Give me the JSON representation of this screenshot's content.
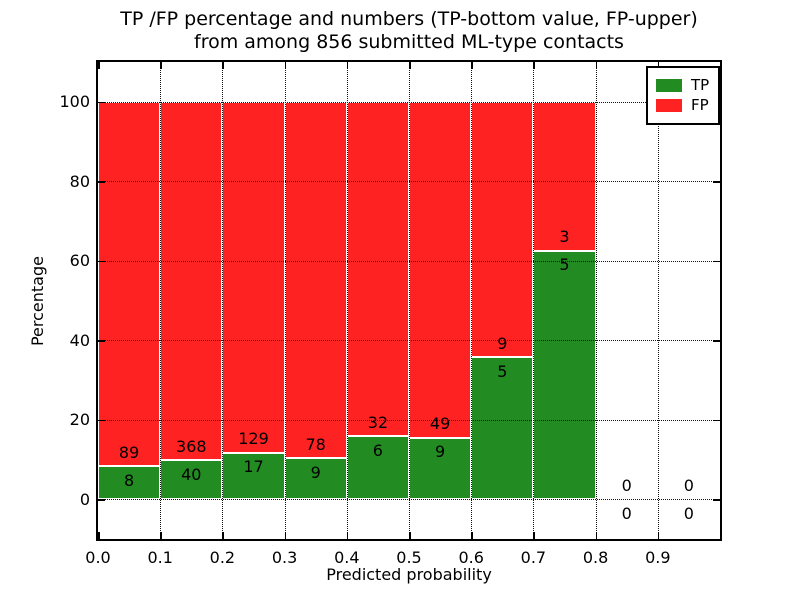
{
  "chart_data": {
    "type": "bar",
    "stacked": true,
    "units": "percent-of-bin-total",
    "title_lines": [
      "TP /FP percentage and numbers (TP-bottom value, FP-upper)",
      "from among 856 submitted ML-type contacts"
    ],
    "xlabel": "Predicted probability",
    "ylabel": "Percentage",
    "total_contacts": 856,
    "bin_edges": [
      0.0,
      0.1,
      0.2,
      0.3,
      0.4,
      0.5,
      0.6,
      0.7,
      0.8,
      0.9,
      1.0
    ],
    "categories": [
      "0.0-0.1",
      "0.1-0.2",
      "0.2-0.3",
      "0.3-0.4",
      "0.4-0.5",
      "0.5-0.6",
      "0.6-0.7",
      "0.7-0.8",
      "0.8-0.9",
      "0.9-1.0"
    ],
    "series": [
      {
        "name": "TP",
        "color": "#228b22",
        "counts": [
          8,
          40,
          17,
          9,
          6,
          9,
          5,
          5,
          0,
          0
        ]
      },
      {
        "name": "FP",
        "color": "#ff2222",
        "counts": [
          89,
          368,
          129,
          78,
          32,
          49,
          9,
          3,
          0,
          0
        ]
      }
    ],
    "tp_percent_of_bin": [
      8.2,
      9.8,
      11.6,
      10.3,
      15.8,
      15.5,
      35.7,
      62.5,
      0,
      0
    ],
    "xticks": [
      {
        "value": 0.0,
        "label": "0.0"
      },
      {
        "value": 0.1,
        "label": "0.1"
      },
      {
        "value": 0.2,
        "label": "0.2"
      },
      {
        "value": 0.3,
        "label": "0.3"
      },
      {
        "value": 0.4,
        "label": "0.4"
      },
      {
        "value": 0.5,
        "label": "0.5"
      },
      {
        "value": 0.6,
        "label": "0.6"
      },
      {
        "value": 0.7,
        "label": "0.7"
      },
      {
        "value": 0.8,
        "label": "0.8"
      },
      {
        "value": 0.9,
        "label": "0.9"
      }
    ],
    "yticks": [
      {
        "value": 0,
        "label": "0"
      },
      {
        "value": 20,
        "label": "20"
      },
      {
        "value": 40,
        "label": "40"
      },
      {
        "value": 60,
        "label": "60"
      },
      {
        "value": 80,
        "label": "80"
      },
      {
        "value": 100,
        "label": "100"
      }
    ],
    "xlim": [
      0.0,
      1.0
    ],
    "ylim": [
      -10,
      110
    ],
    "grid": {
      "on": true,
      "style": "dotted",
      "color": "#111111"
    },
    "legend": {
      "position": "upper right",
      "entries": [
        {
          "label": "TP",
          "color": "#228b22"
        },
        {
          "label": "FP",
          "color": "#ff2222"
        }
      ]
    }
  }
}
